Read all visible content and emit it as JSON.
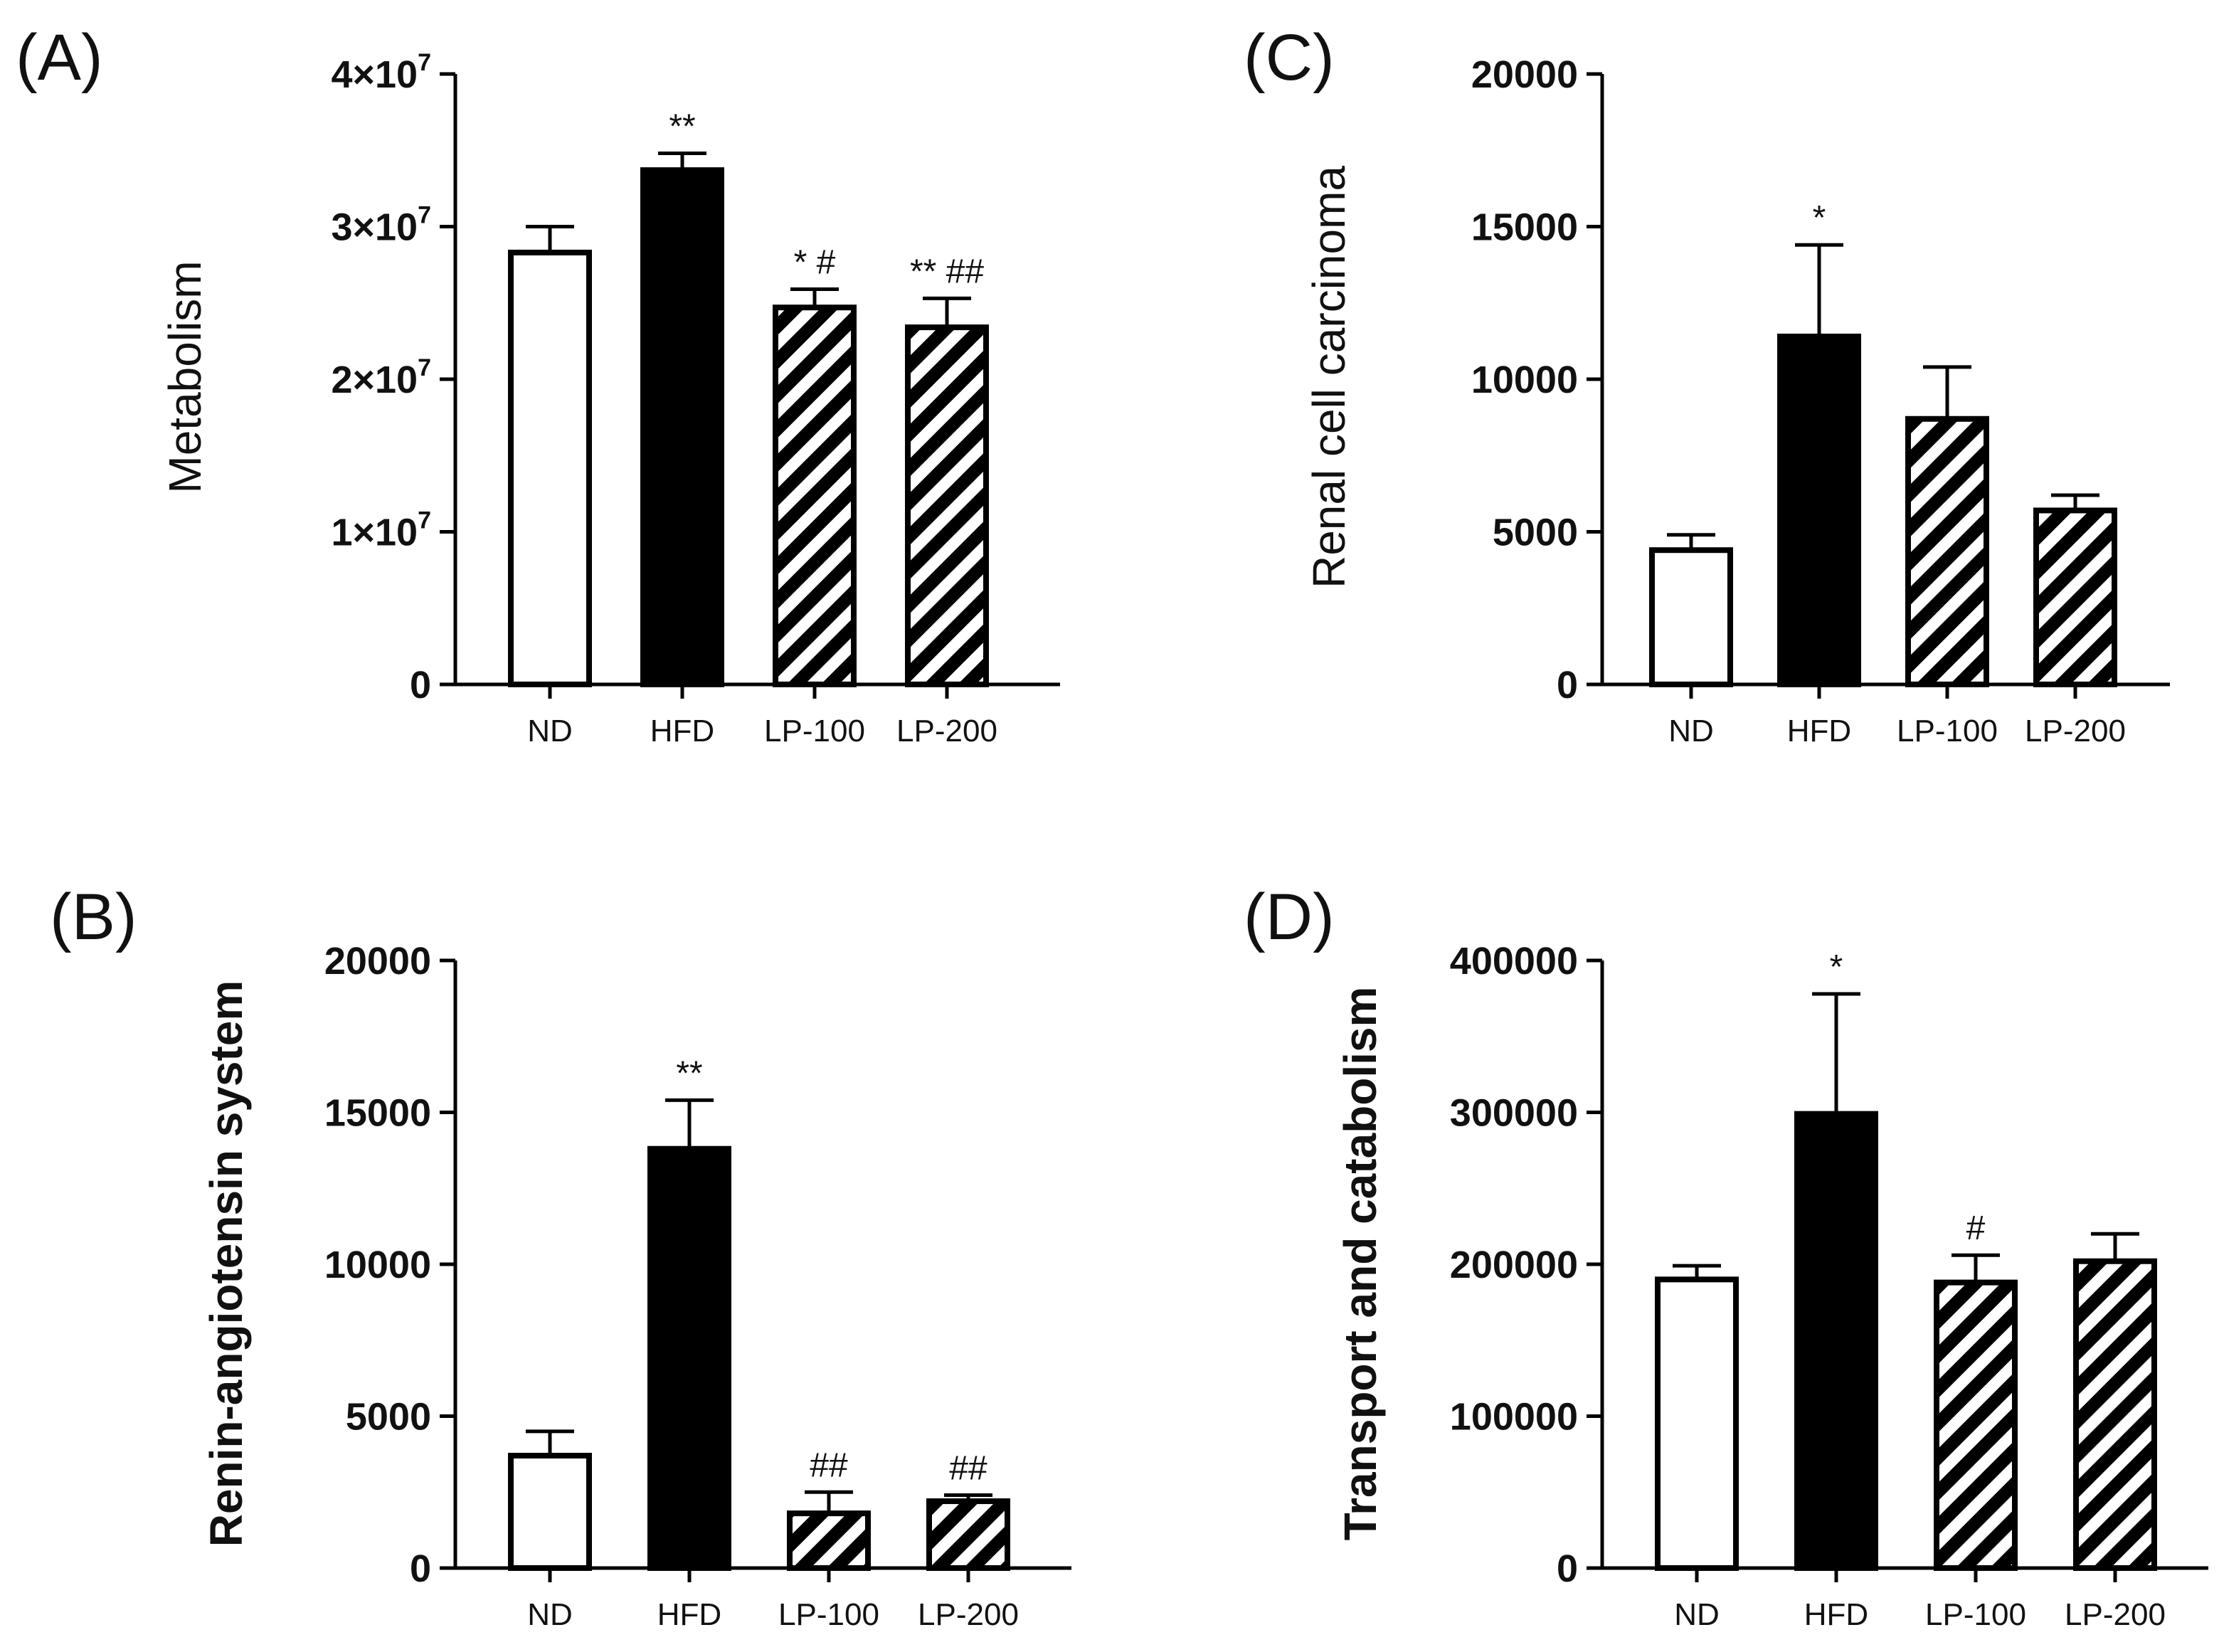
{
  "chart_data": [
    {
      "panel": "(A)",
      "type": "bar",
      "title": "",
      "xlabel": "",
      "ylabel": "Metabolism",
      "ylabel_bold": false,
      "categories": [
        "ND",
        "HFD",
        "LP-100",
        "LP-200"
      ],
      "values": [
        28300000,
        33700000,
        24700000,
        23400000
      ],
      "errors": [
        1700000,
        1100000,
        1200000,
        1900000
      ],
      "fills": [
        "white",
        "black",
        "hatched",
        "hatched"
      ],
      "annotations": [
        "",
        "**",
        "* #",
        "** ##"
      ],
      "ylim": [
        0,
        40000000
      ],
      "yticks": [
        {
          "value": 0,
          "label": "0"
        },
        {
          "value": 10000000,
          "mantissa": "1",
          "base": "×10",
          "exponent": "7"
        },
        {
          "value": 20000000,
          "mantissa": "2",
          "base": "×10",
          "exponent": "7"
        },
        {
          "value": 30000000,
          "mantissa": "3",
          "base": "×10",
          "exponent": "7"
        },
        {
          "value": 40000000,
          "mantissa": "4",
          "base": "×10",
          "exponent": "7"
        }
      ]
    },
    {
      "panel": "(B)",
      "type": "bar",
      "title": "",
      "xlabel": "",
      "ylabel": "Renin-angiotensin system",
      "ylabel_bold": true,
      "categories": [
        "ND",
        "HFD",
        "LP-100",
        "LP-200"
      ],
      "values": [
        3700,
        13800,
        1800,
        2200
      ],
      "errors": [
        800,
        1600,
        700,
        200
      ],
      "fills": [
        "white",
        "black",
        "hatched",
        "hatched"
      ],
      "annotations": [
        "",
        "**",
        "##",
        "##"
      ],
      "ylim": [
        0,
        20000
      ],
      "yticks": [
        {
          "value": 0,
          "label": "0"
        },
        {
          "value": 5000,
          "label": "5000"
        },
        {
          "value": 10000,
          "label": "10000"
        },
        {
          "value": 15000,
          "label": "15000"
        },
        {
          "value": 20000,
          "label": "20000"
        }
      ]
    },
    {
      "panel": "(C)",
      "type": "bar",
      "title": "",
      "xlabel": "",
      "ylabel": "Renal cell carcinoma",
      "ylabel_bold": false,
      "categories": [
        "ND",
        "HFD",
        "LP-100",
        "LP-200"
      ],
      "values": [
        4400,
        11400,
        8700,
        5700
      ],
      "errors": [
        500,
        3000,
        1700,
        500
      ],
      "fills": [
        "white",
        "black",
        "hatched",
        "hatched"
      ],
      "annotations": [
        "",
        "*",
        "",
        ""
      ],
      "ylim": [
        0,
        20000
      ],
      "yticks": [
        {
          "value": 0,
          "label": "0"
        },
        {
          "value": 5000,
          "label": "5000"
        },
        {
          "value": 10000,
          "label": "10000"
        },
        {
          "value": 15000,
          "label": "15000"
        },
        {
          "value": 20000,
          "label": "20000"
        }
      ]
    },
    {
      "panel": "(D)",
      "type": "bar",
      "title": "",
      "xlabel": "",
      "ylabel": "Transport and catabolism",
      "ylabel_bold": true,
      "categories": [
        "ND",
        "HFD",
        "LP-100",
        "LP-200"
      ],
      "values": [
        190000,
        299000,
        188000,
        202000
      ],
      "errors": [
        9000,
        79000,
        18000,
        18000
      ],
      "fills": [
        "white",
        "black",
        "hatched",
        "hatched"
      ],
      "annotations": [
        "",
        "*",
        "#",
        ""
      ],
      "ylim": [
        0,
        400000
      ],
      "yticks": [
        {
          "value": 0,
          "label": "0"
        },
        {
          "value": 100000,
          "label": "100000"
        },
        {
          "value": 200000,
          "label": "200000"
        },
        {
          "value": 300000,
          "label": "300000"
        },
        {
          "value": 400000,
          "label": "400000"
        }
      ]
    }
  ]
}
